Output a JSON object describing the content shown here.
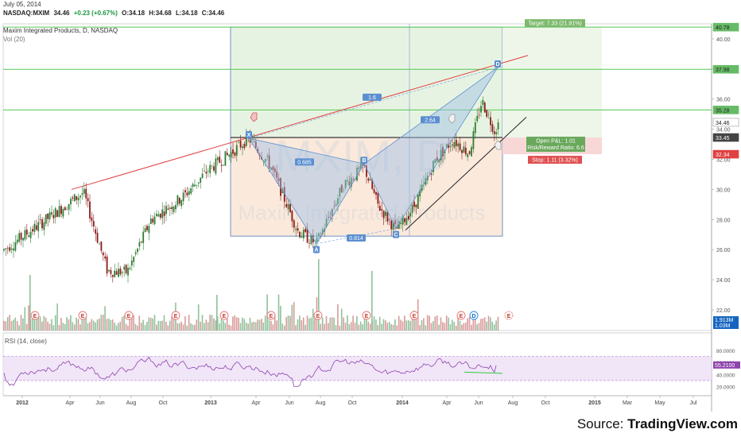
{
  "header": {
    "date": "July 05, 2014",
    "symbol": "NASDAQ:MXIM",
    "last": "34.46",
    "change": "+0.23 (+0.67%)",
    "open": "O:34.18",
    "high": "H:34.68",
    "low": "L:34.18",
    "close": "C:34.46"
  },
  "legends": {
    "main": "Maxim Integrated Products, D, NASDAQ",
    "volume": "Vol (20)",
    "rsi": "RSI (14, close)"
  },
  "source": {
    "prefix": "Source: ",
    "brand": "TradingView.com"
  },
  "colors": {
    "up": "#2e7d32",
    "down": "#8b1a1a",
    "target_zone": "#e7f3e2",
    "entry_zone": "#fbe9dc",
    "pattern_fill": "#9bbfe6",
    "h_line": "#55c855",
    "trend_red": "#e04040",
    "rsi_line": "#8e44ad",
    "rsi_band": "#efe0f7"
  },
  "chart_data": {
    "type": "candlestick",
    "ylim": [
      22.0,
      41.0
    ],
    "price_axis": [
      "40.00",
      "38.00",
      "36.00",
      "34.00",
      "32.00",
      "30.00",
      "28.00",
      "26.00",
      "24.00",
      "22.00"
    ],
    "price_badges": [
      {
        "value": "40.78",
        "color": "#66bb66"
      },
      {
        "value": "37.98",
        "color": "#66bb66"
      },
      {
        "value": "35.28",
        "color": "#66bb66"
      },
      {
        "value": "34.46",
        "color": "#ffffff"
      },
      {
        "value": "33.45",
        "color": "#444444"
      },
      {
        "value": "32.34",
        "color": "#e04040"
      }
    ],
    "time_axis": [
      "2012",
      "Apr",
      "Jun",
      "Aug",
      "Oct",
      "2013",
      "Apr",
      "Jun",
      "Aug",
      "Oct",
      "2014",
      "Apr",
      "Jun",
      "Aug",
      "Oct",
      "2015",
      "Mar",
      "May",
      "Jul"
    ],
    "horizontal_lines": [
      40.78,
      37.98,
      35.28
    ],
    "pattern_points": [
      {
        "label": "X",
        "value": 33.4
      },
      {
        "label": "A",
        "value": 26.4
      },
      {
        "label": "B",
        "value": 31.7
      },
      {
        "label": "C",
        "value": 27.4
      },
      {
        "label": "D",
        "value": 38.1
      }
    ],
    "pattern_ratios": [
      "0.685",
      "0.814",
      "2.64",
      "1.6"
    ],
    "watermark": "MXIM, D",
    "watermark_sub": "Maxim Integrated Products",
    "target_label": "Target: 7.33 (21.91%)",
    "open_pl": "Open P&L: 1.01",
    "risk_reward": "Risk/Reward Ratio: 6.6",
    "stop_label": "Stop: 1.11 (3.32%)",
    "volume_axis": [
      "1.913M",
      "1.03M"
    ],
    "rsi_axis": [
      "80.0000",
      "60.0000",
      "55.2100",
      "40.0000",
      "20.0000"
    ],
    "rsi_last": 55.21,
    "earnings_marker": "E",
    "dividend_marker": "D"
  }
}
